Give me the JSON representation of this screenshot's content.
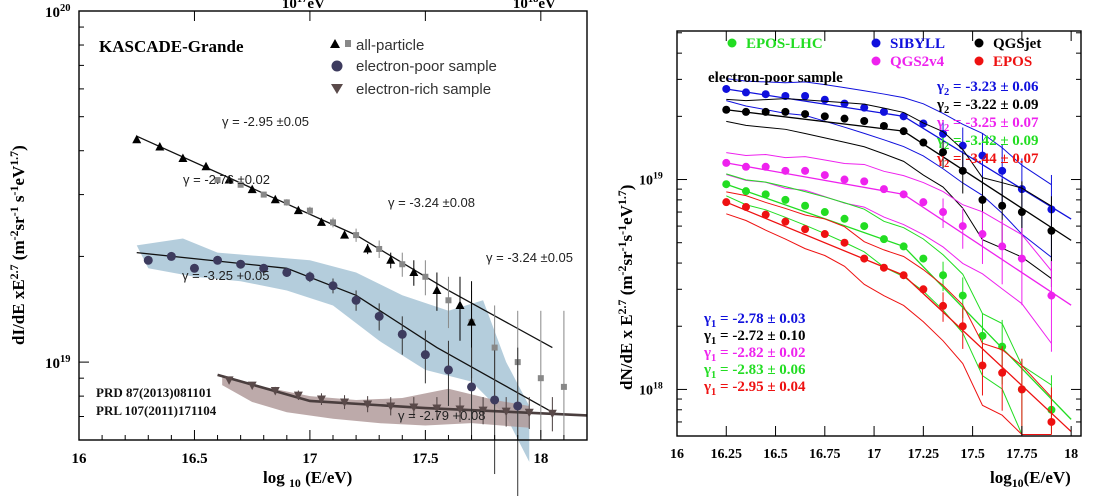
{
  "chart_data": [
    {
      "type": "scatter",
      "panel": "left",
      "title": "KASCADE-Grande",
      "xlabel": "log 10 (E/eV)",
      "ylabel": "dI/dE xE^2.7 (m^-2 sr^-1 s^-1 eV^1.7)",
      "top_axis_ticks": [
        "10^17 eV",
        "10^18 eV"
      ],
      "xlim": [
        16,
        18.2
      ],
      "ylim": [
        6e+18,
        1e+20
      ],
      "yscale": "log",
      "x_ticks": [
        "16",
        "16.5",
        "17",
        "17.5",
        "18"
      ],
      "y_ticks": [
        "10^19",
        "10^20"
      ],
      "legend": [
        "all-particle",
        "electron-poor sample",
        "electron-rich sample"
      ],
      "legend_position": "top-right",
      "references": [
        "PRD 87(2013)081101",
        "PRL 107(2011)171104"
      ],
      "fit_labels": [
        "γ = -2.95 ±0.05",
        "γ = -3.24 ±0.08",
        "γ = -2.76 ±0.02",
        "γ = -3.24 ±0.05",
        "γ = -3.25 +0.05",
        "γ = -2.79 +0.08"
      ],
      "series": [
        {
          "name": "all-particle",
          "x": [
            16.25,
            16.35,
            16.45,
            16.55,
            16.65,
            16.75,
            16.85,
            16.95,
            17.05,
            17.15,
            17.25,
            17.35,
            17.45,
            17.55,
            17.65,
            17.7
          ],
          "y": [
            4.3e+19,
            4.1e+19,
            3.8e+19,
            3.6e+19,
            3.3e+19,
            3.1e+19,
            2.9e+19,
            2.7e+19,
            2.5e+19,
            2.3e+19,
            2.1e+19,
            1.95e+19,
            1.8e+19,
            1.6e+19,
            1.45e+19,
            1.3e+19
          ],
          "errors": [
            2e+17,
            2e+17,
            2e+17,
            2e+17,
            2e+17,
            2e+17,
            3e+17,
            3e+17,
            4e+17,
            5e+17,
            7e+17,
            1e+18,
            1.5e+18,
            2e+18,
            3e+18,
            4e+18
          ]
        },
        {
          "name": "all-particle (grey squares)",
          "x": [
            16.6,
            16.7,
            16.8,
            16.9,
            17.0,
            17.1,
            17.2,
            17.3,
            17.4,
            17.5,
            17.6,
            17.7,
            17.8,
            17.9,
            18.0,
            18.1
          ],
          "y": [
            3.3e+19,
            3.2e+19,
            3e+19,
            2.85e+19,
            2.7e+19,
            2.5e+19,
            2.3e+19,
            2.1e+19,
            1.9e+19,
            1.75e+19,
            1.5e+19,
            1.3e+19,
            1.1e+19,
            1e+19,
            9e+18,
            8.5e+18
          ],
          "errors": [
            5e+17,
            5e+17,
            5e+17,
            6e+17,
            7e+17,
            8e+17,
            1e+18,
            1.2e+18,
            1.5e+18,
            2e+18,
            2.5e+18,
            3e+18,
            3.5e+18,
            4e+18,
            5e+18,
            5.5e+18
          ]
        },
        {
          "name": "electron-poor sample",
          "x": [
            16.3,
            16.4,
            16.5,
            16.6,
            16.7,
            16.8,
            16.9,
            17.0,
            17.1,
            17.2,
            17.3,
            17.4,
            17.5,
            17.6,
            17.7,
            17.8,
            17.9
          ],
          "y": [
            1.95e+19,
            2e+19,
            1.85e+19,
            1.95e+19,
            1.9e+19,
            1.85e+19,
            1.8e+19,
            1.75e+19,
            1.65e+19,
            1.5e+19,
            1.35e+19,
            1.2e+19,
            1.05e+19,
            9.5e+18,
            8.5e+18,
            7.8e+18,
            7.5e+18
          ],
          "errors": [
            3e+17,
            3e+17,
            3e+17,
            3e+17,
            3e+17,
            4e+17,
            5e+17,
            6e+17,
            8e+17,
            1e+18,
            1.2e+18,
            1.5e+18,
            1.8e+18,
            2e+18,
            2.5e+18,
            3e+18,
            3.5e+18
          ]
        },
        {
          "name": "electron-rich sample",
          "x": [
            16.65,
            16.75,
            16.85,
            16.95,
            17.05,
            17.15,
            17.25,
            17.35,
            17.45,
            17.55,
            17.65,
            17.75,
            17.85,
            17.95,
            18.05
          ],
          "y": [
            8.9e+18,
            8.6e+18,
            8.3e+18,
            8.05e+18,
            7.85e+18,
            7.7e+18,
            7.6e+18,
            7.5e+18,
            7.45e+18,
            7.4e+18,
            7.35e+18,
            7.3e+18,
            7.25e+18,
            7.2e+18,
            7.15e+18
          ],
          "errors": [
            1e+17,
            1.5e+17,
            2e+17,
            2.5e+17,
            3e+17,
            3.5e+17,
            4e+17,
            4.5e+17,
            5e+17,
            5.5e+17,
            6e+17,
            6.5e+17,
            7e+17,
            7.5e+17,
            8e+17
          ]
        }
      ],
      "colors": {
        "all_particle": "#000000",
        "grey_squares": "#888888",
        "electron_poor": "#3d3b5e",
        "electron_rich": "#5a4a4a",
        "band_blue": "#a7c4d6",
        "band_brown": "#b29b9b"
      }
    },
    {
      "type": "scatter",
      "panel": "right",
      "title": "electron-poor sample",
      "xlabel": "log10(E/eV)",
      "ylabel": "dN/dE x E^2.7 (m^-2 sr^-1 s^-1 eV^1.7)",
      "xlim": [
        16,
        18.05
      ],
      "ylim": [
        6e+17,
        5.1e+19
      ],
      "yscale": "log",
      "x_ticks": [
        "16",
        "16.25",
        "16.5",
        "16.75",
        "17",
        "17.25",
        "17.5",
        "17.75",
        "18"
      ],
      "y_ticks": [
        "10^18",
        "10^19"
      ],
      "legend": [
        "EPOS-LHC",
        "SIBYLL",
        "QGSjet",
        "QGS2v4",
        "EPOS"
      ],
      "legend_position": "top",
      "gamma2_labels": [
        "γ2 = -3.23 ± 0.06",
        "γ2 = -3.22 ± 0.09",
        "γ2 = -3.25 ± 0.07",
        "γ2 = -3.42 ± 0.09",
        "γ2 = -3.44 ± 0.07"
      ],
      "gamma1_labels": [
        "γ1 = -2.78 ± 0.03",
        "γ1 = -2.72 ± 0.10",
        "γ1 = -2.82 ± 0.02",
        "γ1 = -2.83 ± 0.06",
        "γ1 = -2.95 ± 0.04"
      ],
      "series": [
        {
          "name": "SIBYLL",
          "x": [
            16.25,
            16.35,
            16.45,
            16.55,
            16.65,
            16.75,
            16.85,
            16.95,
            17.05,
            17.15,
            17.25,
            17.35,
            17.45,
            17.55,
            17.65,
            17.75,
            17.9
          ],
          "y": [
            2.7e+19,
            2.6e+19,
            2.55e+19,
            2.5e+19,
            2.5e+19,
            2.4e+19,
            2.3e+19,
            2.2e+19,
            2.1e+19,
            2e+19,
            1.85e+19,
            1.65e+19,
            1.45e+19,
            1.3e+19,
            1.1e+19,
            9e+18,
            7.2e+18
          ]
        },
        {
          "name": "QGSjet",
          "x": [
            16.25,
            16.35,
            16.45,
            16.55,
            16.65,
            16.75,
            16.85,
            16.95,
            17.05,
            17.15,
            17.25,
            17.35,
            17.45,
            17.55,
            17.65,
            17.75,
            17.9
          ],
          "y": [
            2.15e+19,
            2.1e+19,
            2.1e+19,
            2.1e+19,
            2.05e+19,
            2e+19,
            1.95e+19,
            1.9e+19,
            1.8e+19,
            1.7e+19,
            1.5e+19,
            1.35e+19,
            1.1e+19,
            8e+18,
            7.5e+18,
            7e+18,
            5.7e+18
          ]
        },
        {
          "name": "QGS2v4",
          "x": [
            16.25,
            16.35,
            16.45,
            16.55,
            16.65,
            16.75,
            16.85,
            16.95,
            17.05,
            17.15,
            17.25,
            17.35,
            17.45,
            17.55,
            17.65,
            17.75,
            17.9
          ],
          "y": [
            1.2e+19,
            1.15e+19,
            1.15e+19,
            1.1e+19,
            1.1e+19,
            1.05e+19,
            1e+19,
            9.8e+18,
            9e+18,
            8.5e+18,
            7.8e+18,
            7e+18,
            6e+18,
            5.5e+18,
            4.8e+18,
            4.2e+18,
            2.8e+18
          ]
        },
        {
          "name": "EPOS-LHC",
          "x": [
            16.25,
            16.35,
            16.45,
            16.55,
            16.65,
            16.75,
            16.85,
            16.95,
            17.05,
            17.15,
            17.25,
            17.35,
            17.45,
            17.55,
            17.65,
            17.75,
            17.9
          ],
          "y": [
            9.5e+18,
            8.8e+18,
            8.5e+18,
            8e+18,
            7.5e+18,
            7e+18,
            6.5e+18,
            6e+18,
            5.2e+18,
            4.8e+18,
            4.2e+18,
            3.5e+18,
            2.8e+18,
            1.8e+18,
            1.6e+18,
            1e+18,
            8e+17
          ]
        },
        {
          "name": "EPOS",
          "x": [
            16.25,
            16.35,
            16.45,
            16.55,
            16.65,
            16.75,
            16.85,
            16.95,
            17.05,
            17.15,
            17.25,
            17.35,
            17.45,
            17.55,
            17.65,
            17.75,
            17.9
          ],
          "y": [
            7.8e+18,
            7.4e+18,
            6.8e+18,
            6.3e+18,
            5.8e+18,
            5.5e+18,
            5e+18,
            4.2e+18,
            3.8e+18,
            3.5e+18,
            3e+18,
            2.5e+18,
            2e+18,
            1.3e+18,
            1.2e+18,
            1e+18,
            7e+17
          ]
        }
      ],
      "colors": {
        "EPOS-LHC": "#22dd22",
        "SIBYLL": "#1010dd",
        "QGSjet": "#000000",
        "QGS2v4": "#ee22ee",
        "EPOS": "#ee1111"
      }
    }
  ]
}
